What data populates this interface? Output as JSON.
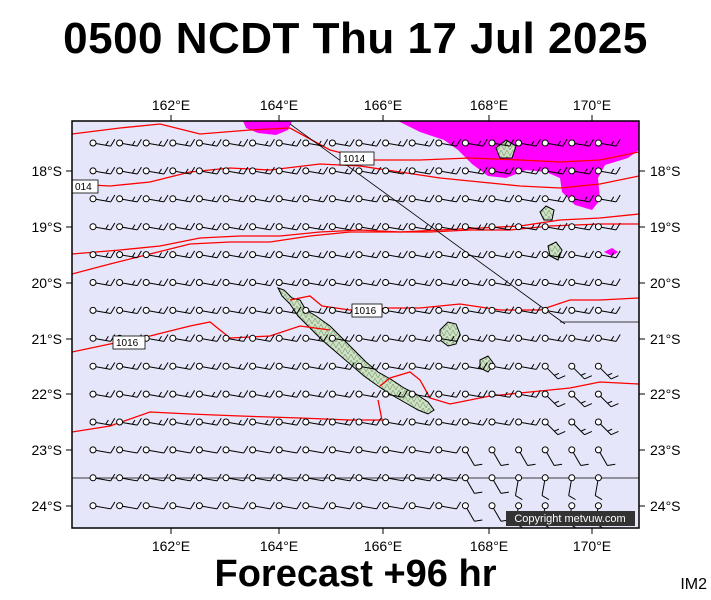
{
  "title": "0500 NCDT Thu 17 Jul 2025",
  "footer": "Forecast +96 hr",
  "image_code": "IM2",
  "copyright": "Copyright metvuw.com",
  "longitude_labels": [
    "162°E",
    "164°E",
    "166°E",
    "168°E",
    "170°E"
  ],
  "latitude_labels": [
    "18°S",
    "19°S",
    "20°S",
    "21°S",
    "22°S",
    "23°S",
    "24°S"
  ],
  "isobar_labels": [
    "1014",
    "014",
    "1016",
    "1016"
  ],
  "colors": {
    "ocean": "#e6e6fa",
    "land": "#c2d9b8",
    "isobar": "#ff0000",
    "rain": "#ff00ff",
    "wind": "#000000"
  },
  "icons": [
    "wind-barb-icon",
    "station-circle-icon"
  ]
}
